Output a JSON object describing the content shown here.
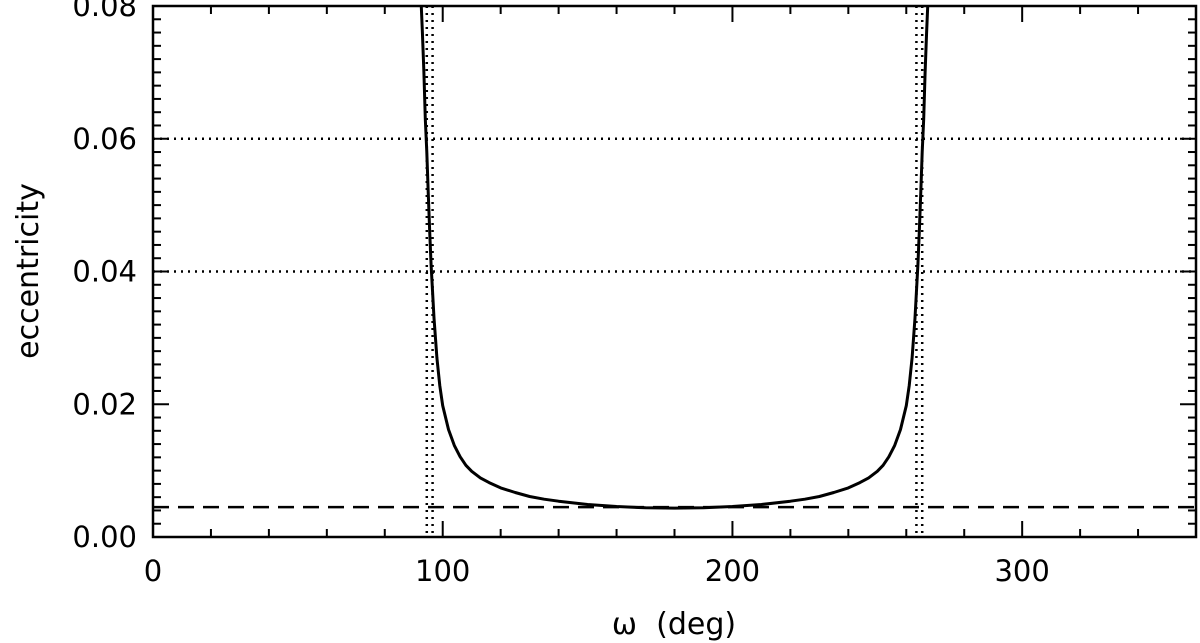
{
  "chart_data": {
    "type": "line",
    "title": "",
    "xlabel": "ω  (deg)",
    "ylabel": "eccentricity",
    "xlim": [
      0,
      360
    ],
    "ylim": [
      0,
      0.08
    ],
    "grid": false,
    "x_ticks": [
      {
        "value": 0,
        "label": "0"
      },
      {
        "value": 100,
        "label": "100"
      },
      {
        "value": 200,
        "label": "200"
      },
      {
        "value": 300,
        "label": "300"
      }
    ],
    "y_ticks": [
      {
        "value": 0,
        "label": "0.00"
      },
      {
        "value": 0.02,
        "label": "0.02"
      },
      {
        "value": 0.04,
        "label": "0.04"
      },
      {
        "value": 0.06,
        "label": "0.06"
      },
      {
        "value": 0.08,
        "label": "0.08"
      }
    ],
    "series": [
      {
        "style": "solid",
        "x": [
          92.5,
          93,
          93.5,
          94,
          94.5,
          95,
          95.5,
          96,
          97,
          98,
          99,
          100,
          102,
          104,
          106,
          108,
          110,
          113,
          116,
          120,
          125,
          130,
          135,
          140,
          150,
          160,
          170,
          180,
          190,
          200,
          210,
          220,
          225,
          230,
          235,
          240,
          244,
          247,
          250,
          252,
          254,
          256,
          258,
          260,
          261,
          262,
          263,
          264,
          264.5,
          265,
          265.5,
          266,
          266.5,
          267,
          267.5
        ],
        "y": [
          0.081,
          0.076,
          0.07,
          0.063,
          0.058,
          0.052,
          0.046,
          0.041,
          0.033,
          0.027,
          0.0228,
          0.0198,
          0.0162,
          0.0138,
          0.0121,
          0.0108,
          0.0099,
          0.0089,
          0.0082,
          0.0074,
          0.0067,
          0.0061,
          0.0057,
          0.0054,
          0.0049,
          0.0046,
          0.0044,
          0.00435,
          0.0044,
          0.0046,
          0.0049,
          0.0054,
          0.0057,
          0.0061,
          0.0067,
          0.0074,
          0.0082,
          0.0089,
          0.0099,
          0.0108,
          0.0121,
          0.0138,
          0.0162,
          0.0198,
          0.0228,
          0.027,
          0.033,
          0.041,
          0.046,
          0.052,
          0.058,
          0.063,
          0.07,
          0.076,
          0.081
        ]
      }
    ],
    "reference_lines": [
      {
        "orientation": "horizontal",
        "value": 0.06,
        "style": "dotted"
      },
      {
        "orientation": "horizontal",
        "value": 0.04,
        "style": "dotted"
      },
      {
        "orientation": "horizontal",
        "value": 0.0045,
        "style": "dashed"
      },
      {
        "orientation": "vertical",
        "value": 94.5,
        "style": "dotted"
      },
      {
        "orientation": "vertical",
        "value": 96.5,
        "style": "dotted"
      },
      {
        "orientation": "vertical",
        "value": 263.5,
        "style": "dotted"
      },
      {
        "orientation": "vertical",
        "value": 265.5,
        "style": "dotted"
      }
    ],
    "colors": {
      "line": "#000000",
      "axes": "#000000",
      "background": "#ffffff"
    }
  }
}
